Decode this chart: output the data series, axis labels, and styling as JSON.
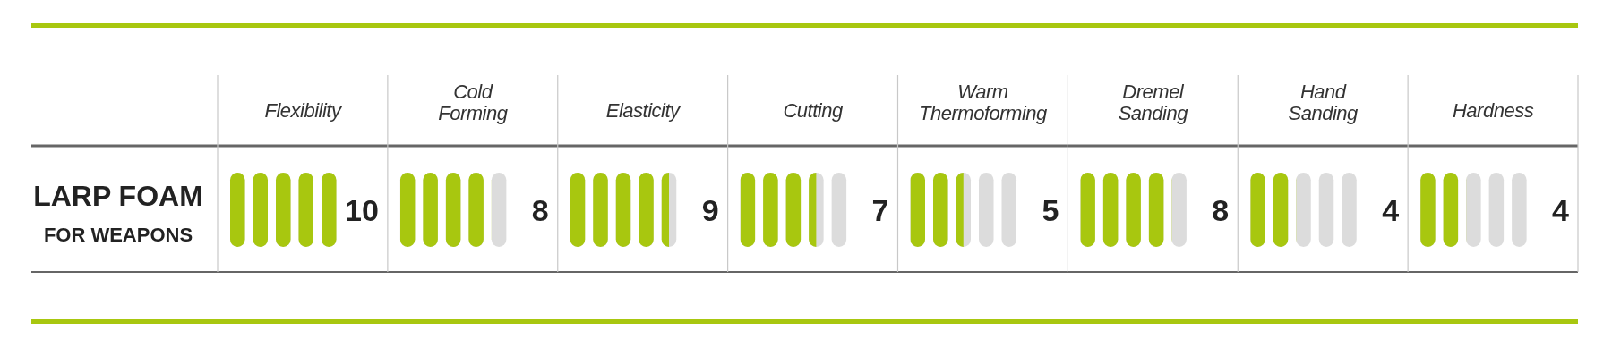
{
  "chart_data": {
    "type": "other",
    "categories": [
      "Flexibility",
      "Cold Forming",
      "Elasticity",
      "Cutting",
      "Warm Thermoforming",
      "Dremel Sanding",
      "Hand Sanding",
      "Hardness"
    ],
    "ylabel": "LARP FOAM FOR WEAPONS",
    "series": [
      {
        "color": "#a8c70f",
        "values": [
          10,
          8,
          9,
          7,
          5,
          8,
          4,
          4
        ]
      }
    ],
    "data_labels": true
  }
}
